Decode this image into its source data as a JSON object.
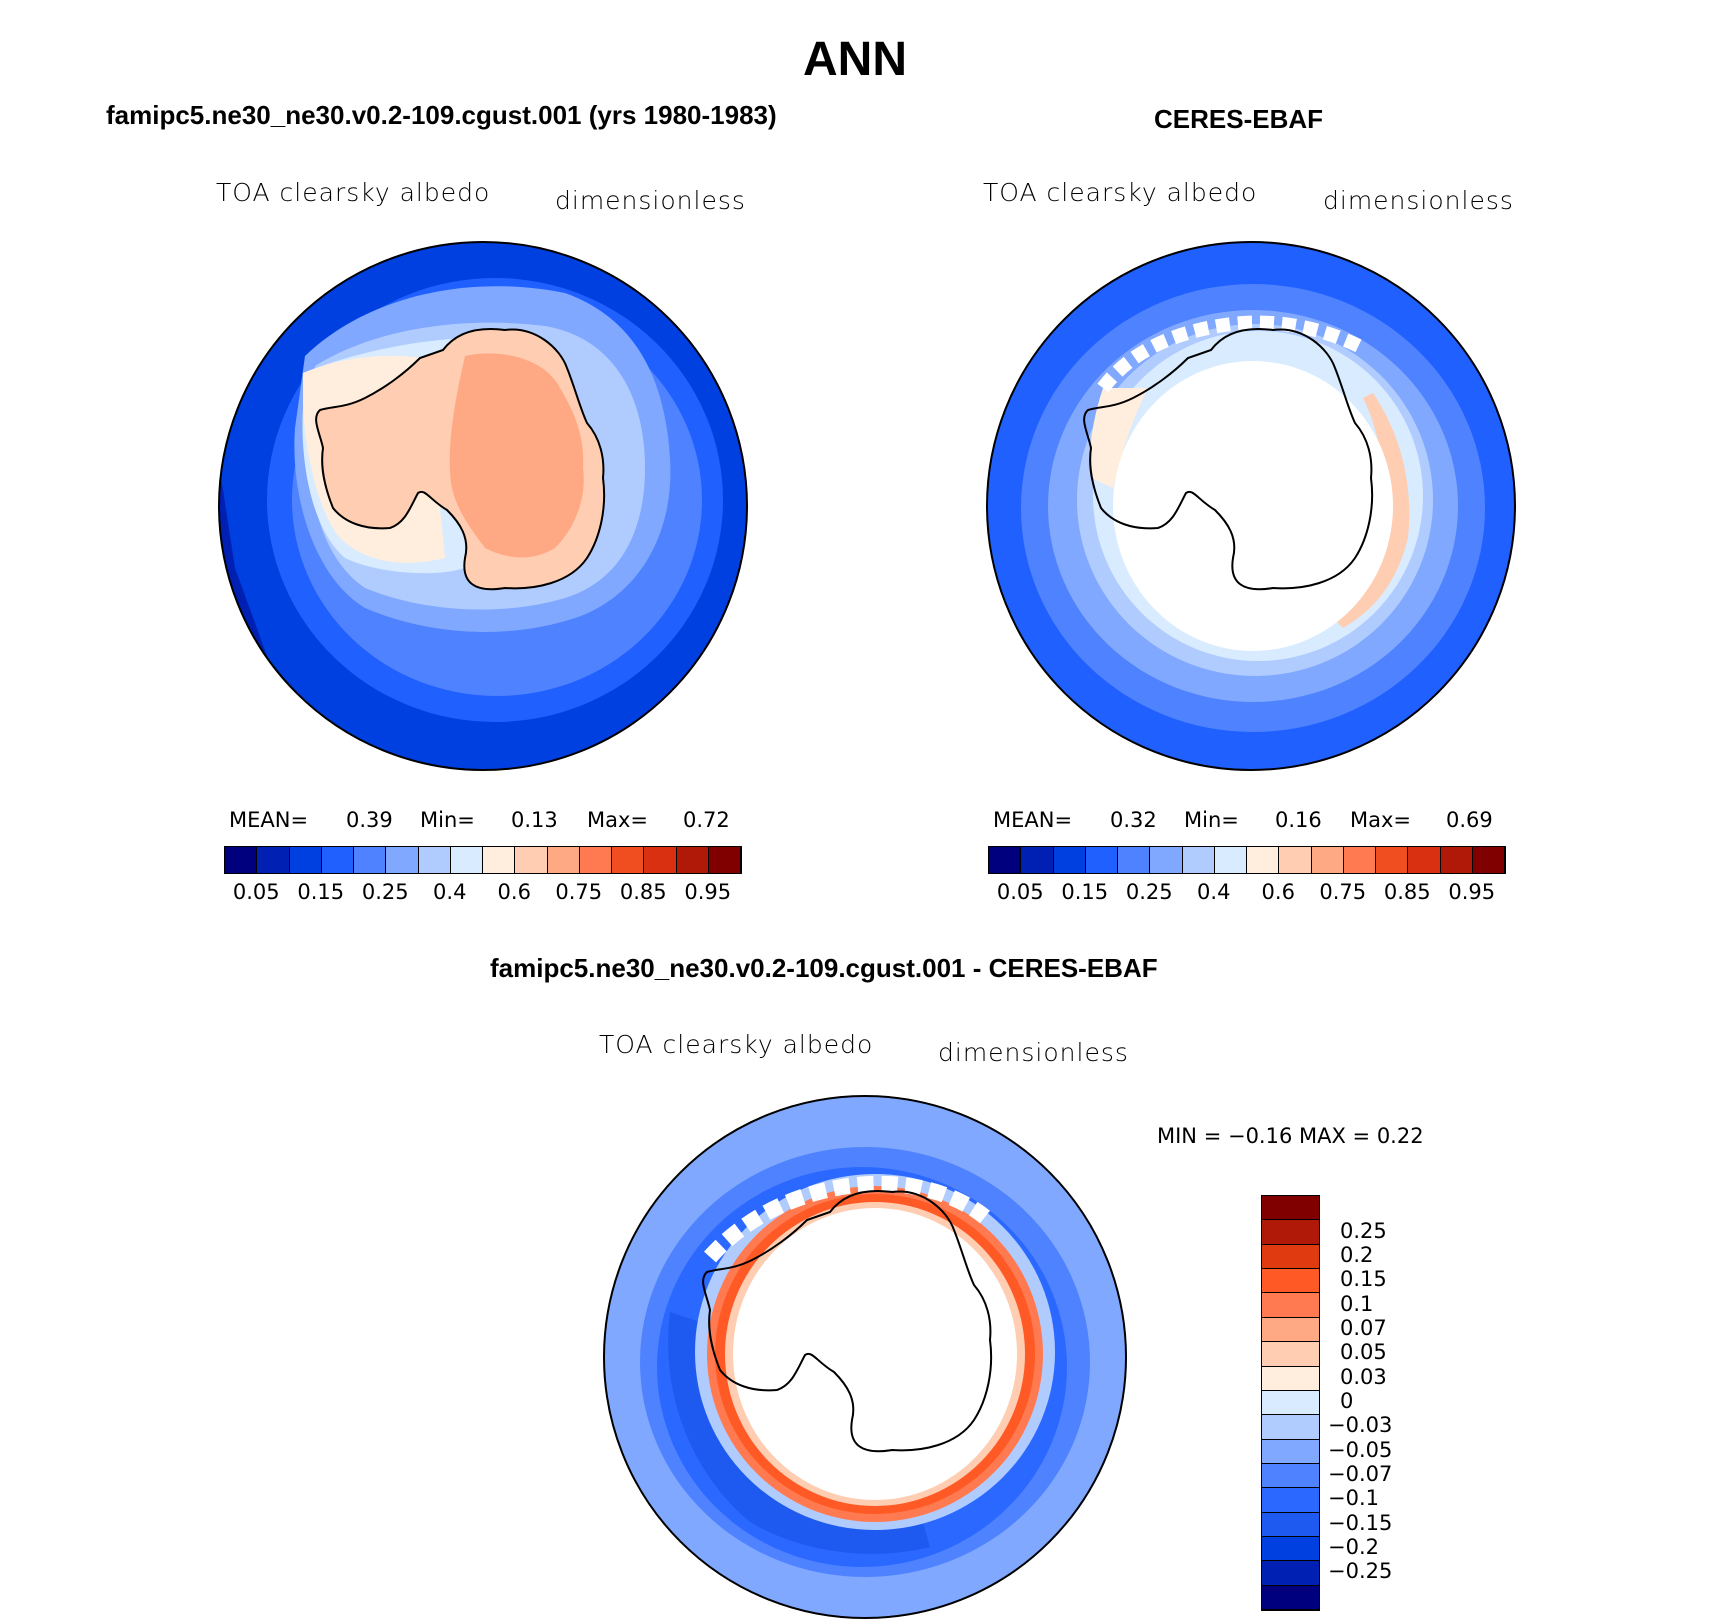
{
  "main_title": "ANN",
  "colors": {
    "seq_levels": [
      "#00007f",
      "#0020b4",
      "#0040e0",
      "#2060ff",
      "#4f82ff",
      "#80a8ff",
      "#b0ccff",
      "#d8ebff",
      "#ffeede",
      "#ffcdb2",
      "#ffa984",
      "#ff7a50",
      "#f04e20",
      "#d83010",
      "#b01808",
      "#800000"
    ],
    "diff_levels": [
      "#00007f",
      "#0020b4",
      "#0040e0",
      "#1f5af0",
      "#2a68ff",
      "#4f82ff",
      "#80a8ff",
      "#b0ccff",
      "#d8ebff",
      "#ffeede",
      "#ffcdb2",
      "#ffa984",
      "#ff7a50",
      "#ff5a25",
      "#e03a10",
      "#b01808",
      "#800000"
    ],
    "land_ocean_bg": "#ffffff"
  },
  "panels": [
    {
      "title": "famipc5.ne30_ne30.v0.2-109.cgust.001 (yrs 1980-1983)",
      "variable": "TOA clearsky albedo",
      "units": "dimensionless",
      "mean_label": "MEAN=",
      "mean": "0.39",
      "min_label": "Min=",
      "min": "0.13",
      "max_label": "Max=",
      "max": "0.72"
    },
    {
      "title": "CERES-EBAF",
      "variable": "TOA clearsky albedo",
      "units": "dimensionless",
      "mean_label": "MEAN=",
      "mean": "0.32",
      "min_label": "Min=",
      "min": "0.16",
      "max_label": "Max=",
      "max": "0.69"
    },
    {
      "title": "famipc5.ne30_ne30.v0.2-109.cgust.001 - CERES-EBAF",
      "variable": "TOA clearsky albedo",
      "units": "dimensionless",
      "minmax_text": "MIN =   −0.16 MAX =    0.22"
    }
  ],
  "colorbar_ticks": [
    "0.05",
    "0.15",
    "0.25",
    "0.4",
    "0.6",
    "0.75",
    "0.85",
    "0.95"
  ],
  "diff_colorbar_ticks": [
    "0.25",
    "0.2",
    "0.15",
    "0.1",
    "0.07",
    "0.05",
    "0.03",
    "0",
    "−0.03",
    "−0.05",
    "−0.07",
    "−0.1",
    "−0.15",
    "−0.2",
    "−0.25"
  ]
}
